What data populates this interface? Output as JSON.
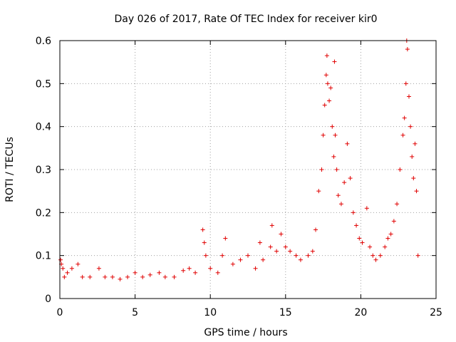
{
  "chart_data": {
    "type": "scatter",
    "title": "Day 026 of 2017, Rate Of TEC Index for receiver kir0",
    "xlabel": "GPS time / hours",
    "ylabel": "ROTI / TECUs",
    "xlim": [
      0,
      25
    ],
    "ylim": [
      0,
      0.6
    ],
    "xticks": [
      0,
      5,
      10,
      15,
      20,
      25
    ],
    "xtick_labels": [
      "0",
      "5",
      "10",
      "15",
      "20",
      "25"
    ],
    "yticks": [
      0,
      0.1,
      0.2,
      0.3,
      0.4,
      0.5,
      0.6
    ],
    "ytick_labels": [
      "0",
      "0.1",
      "0.2",
      "0.3",
      "0.4",
      "0.5",
      "0.6"
    ],
    "grid": true,
    "marker": "+",
    "series": [
      {
        "name": "ROTI",
        "color": "#e00000",
        "points": [
          [
            0.05,
            0.09
          ],
          [
            0.1,
            0.08
          ],
          [
            0.2,
            0.07
          ],
          [
            0.3,
            0.05
          ],
          [
            0.5,
            0.06
          ],
          [
            0.8,
            0.07
          ],
          [
            1.2,
            0.08
          ],
          [
            1.5,
            0.05
          ],
          [
            2.0,
            0.05
          ],
          [
            2.6,
            0.07
          ],
          [
            3.0,
            0.05
          ],
          [
            3.5,
            0.05
          ],
          [
            4.0,
            0.045
          ],
          [
            4.5,
            0.05
          ],
          [
            5.0,
            0.06
          ],
          [
            5.5,
            0.05
          ],
          [
            6.0,
            0.055
          ],
          [
            6.6,
            0.06
          ],
          [
            7.0,
            0.05
          ],
          [
            7.6,
            0.05
          ],
          [
            8.2,
            0.065
          ],
          [
            8.6,
            0.07
          ],
          [
            9.0,
            0.06
          ],
          [
            9.5,
            0.16
          ],
          [
            9.6,
            0.13
          ],
          [
            9.7,
            0.1
          ],
          [
            10.0,
            0.07
          ],
          [
            10.5,
            0.06
          ],
          [
            10.8,
            0.1
          ],
          [
            11.0,
            0.14
          ],
          [
            11.5,
            0.08
          ],
          [
            12.0,
            0.09
          ],
          [
            12.5,
            0.1
          ],
          [
            13.0,
            0.07
          ],
          [
            13.3,
            0.13
          ],
          [
            13.5,
            0.09
          ],
          [
            14.0,
            0.12
          ],
          [
            14.1,
            0.17
          ],
          [
            14.4,
            0.11
          ],
          [
            14.7,
            0.15
          ],
          [
            15.0,
            0.12
          ],
          [
            15.3,
            0.11
          ],
          [
            15.7,
            0.1
          ],
          [
            16.0,
            0.09
          ],
          [
            16.5,
            0.1
          ],
          [
            16.8,
            0.11
          ],
          [
            17.0,
            0.16
          ],
          [
            17.2,
            0.25
          ],
          [
            17.4,
            0.3
          ],
          [
            17.5,
            0.38
          ],
          [
            17.6,
            0.45
          ],
          [
            17.7,
            0.52
          ],
          [
            17.75,
            0.565
          ],
          [
            17.8,
            0.5
          ],
          [
            17.9,
            0.46
          ],
          [
            18.0,
            0.49
          ],
          [
            18.1,
            0.4
          ],
          [
            18.2,
            0.33
          ],
          [
            18.25,
            0.551
          ],
          [
            18.3,
            0.38
          ],
          [
            18.4,
            0.3
          ],
          [
            18.5,
            0.24
          ],
          [
            18.7,
            0.22
          ],
          [
            18.9,
            0.27
          ],
          [
            19.1,
            0.36
          ],
          [
            19.3,
            0.28
          ],
          [
            19.5,
            0.2
          ],
          [
            19.7,
            0.17
          ],
          [
            19.9,
            0.14
          ],
          [
            20.1,
            0.13
          ],
          [
            20.4,
            0.21
          ],
          [
            20.6,
            0.12
          ],
          [
            20.8,
            0.1
          ],
          [
            21.0,
            0.09
          ],
          [
            21.3,
            0.1
          ],
          [
            21.6,
            0.12
          ],
          [
            21.8,
            0.14
          ],
          [
            22.0,
            0.15
          ],
          [
            22.2,
            0.18
          ],
          [
            22.4,
            0.22
          ],
          [
            22.6,
            0.3
          ],
          [
            22.8,
            0.38
          ],
          [
            22.9,
            0.42
          ],
          [
            23.0,
            0.5
          ],
          [
            23.05,
            0.6
          ],
          [
            23.1,
            0.58
          ],
          [
            23.2,
            0.47
          ],
          [
            23.3,
            0.4
          ],
          [
            23.4,
            0.33
          ],
          [
            23.5,
            0.28
          ],
          [
            23.6,
            0.36
          ],
          [
            23.7,
            0.25
          ],
          [
            23.8,
            0.1
          ]
        ]
      }
    ]
  }
}
